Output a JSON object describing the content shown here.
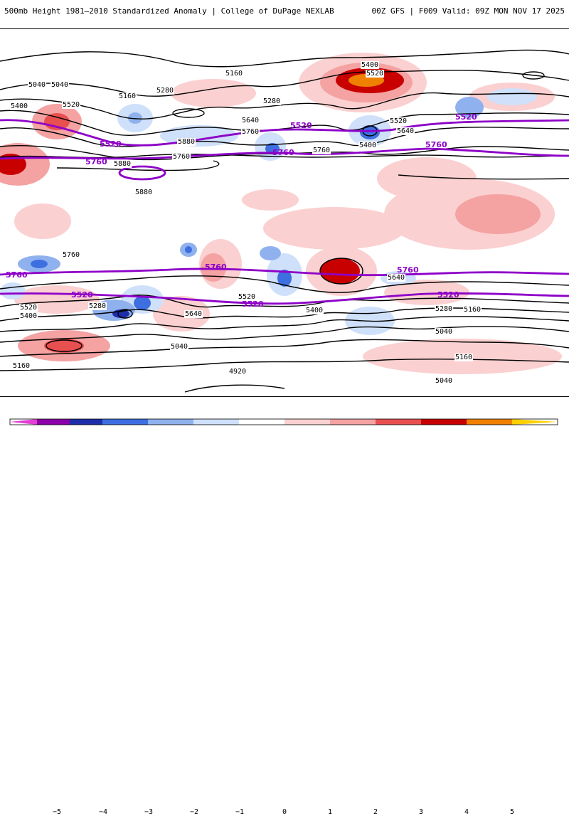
{
  "header": {
    "title": "500mb Height 1981–2010 Standardized Anomaly | College of DuPage NEXLAB",
    "valid": "00Z GFS | F009 Valid: 09Z MON NOV 17 2025"
  },
  "contours": {
    "black_labels": [
      "5040",
      "5160",
      "5280",
      "5400",
      "5520",
      "5640",
      "5760",
      "5880",
      "5400",
      "5520",
      "5520",
      "5640",
      "5400",
      "5280",
      "5160",
      "5040",
      "5760",
      "5760",
      "5880",
      "5880",
      "4920",
      "5160",
      "5040",
      "5040",
      "5160",
      "5280",
      "5400",
      "5520",
      "5640",
      "5760",
      "5040",
      "5160",
      "5280",
      "5400",
      "5520",
      "5640"
    ],
    "purple_labels": [
      "5520",
      "5760",
      "5520",
      "5760",
      "5760",
      "5520",
      "5760",
      "5520",
      "5760",
      "5520",
      "5760",
      "5520"
    ]
  },
  "colorbar": {
    "ticks": [
      "−5",
      "−4",
      "−3",
      "−2",
      "−1",
      "0",
      "1",
      "2",
      "3",
      "4",
      "5"
    ],
    "colors": [
      "#e23fd4",
      "#8b00a8",
      "#1d2ea8",
      "#3d6fe0",
      "#8fb2ee",
      "#cfe0fa",
      "#ffffff",
      "#fbd0d0",
      "#f4a2a2",
      "#e85050",
      "#c80000",
      "#f08000",
      "#ffd000"
    ]
  }
}
